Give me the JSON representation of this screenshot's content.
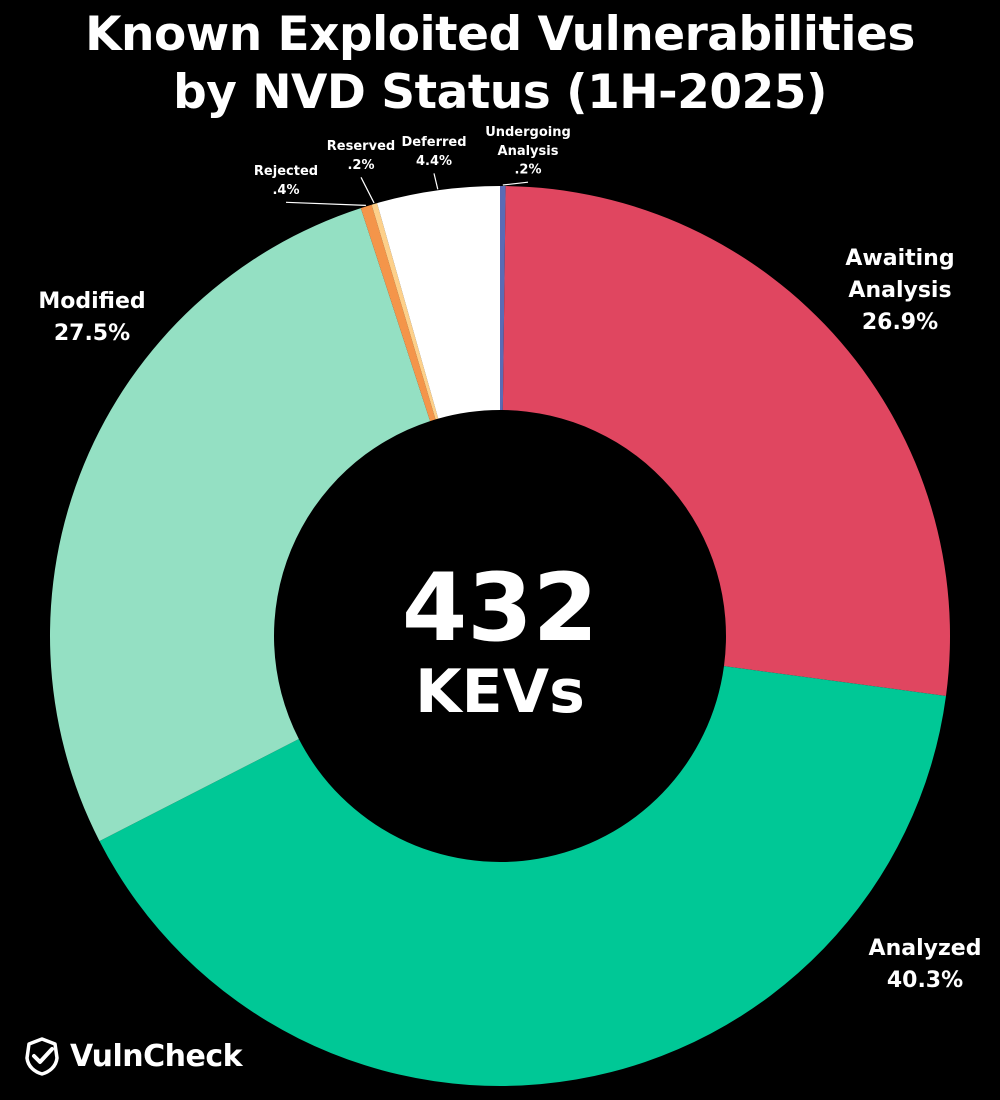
{
  "title_line1": "Known Exploited Vulnerabilities",
  "title_line2": "by NVD Status (1H-2025)",
  "center": {
    "value": "432",
    "label": "KEVs"
  },
  "brand": "VulnCheck",
  "chart_data": {
    "type": "pie",
    "title": "Known Exploited Vulnerabilities by NVD Status (1H-2025)",
    "total": 432,
    "slices": [
      {
        "name": "Undergoing Analysis",
        "value": 0.2,
        "label": ".2%",
        "color": "#5B6BB5"
      },
      {
        "name": "Awaiting Analysis",
        "value": 26.9,
        "label": "26.9%",
        "color": "#E04660"
      },
      {
        "name": "Analyzed",
        "value": 40.3,
        "label": "40.3%",
        "color": "#00C896"
      },
      {
        "name": "Modified",
        "value": 27.5,
        "label": "27.5%",
        "color": "#94E0C3"
      },
      {
        "name": "Rejected",
        "value": 0.4,
        "label": ".4%",
        "color": "#F4954A"
      },
      {
        "name": "Reserved",
        "value": 0.2,
        "label": ".2%",
        "color": "#FDD08A"
      },
      {
        "name": "Deferred",
        "value": 4.4,
        "label": "4.4%",
        "color": "#FFFFFF"
      }
    ]
  }
}
